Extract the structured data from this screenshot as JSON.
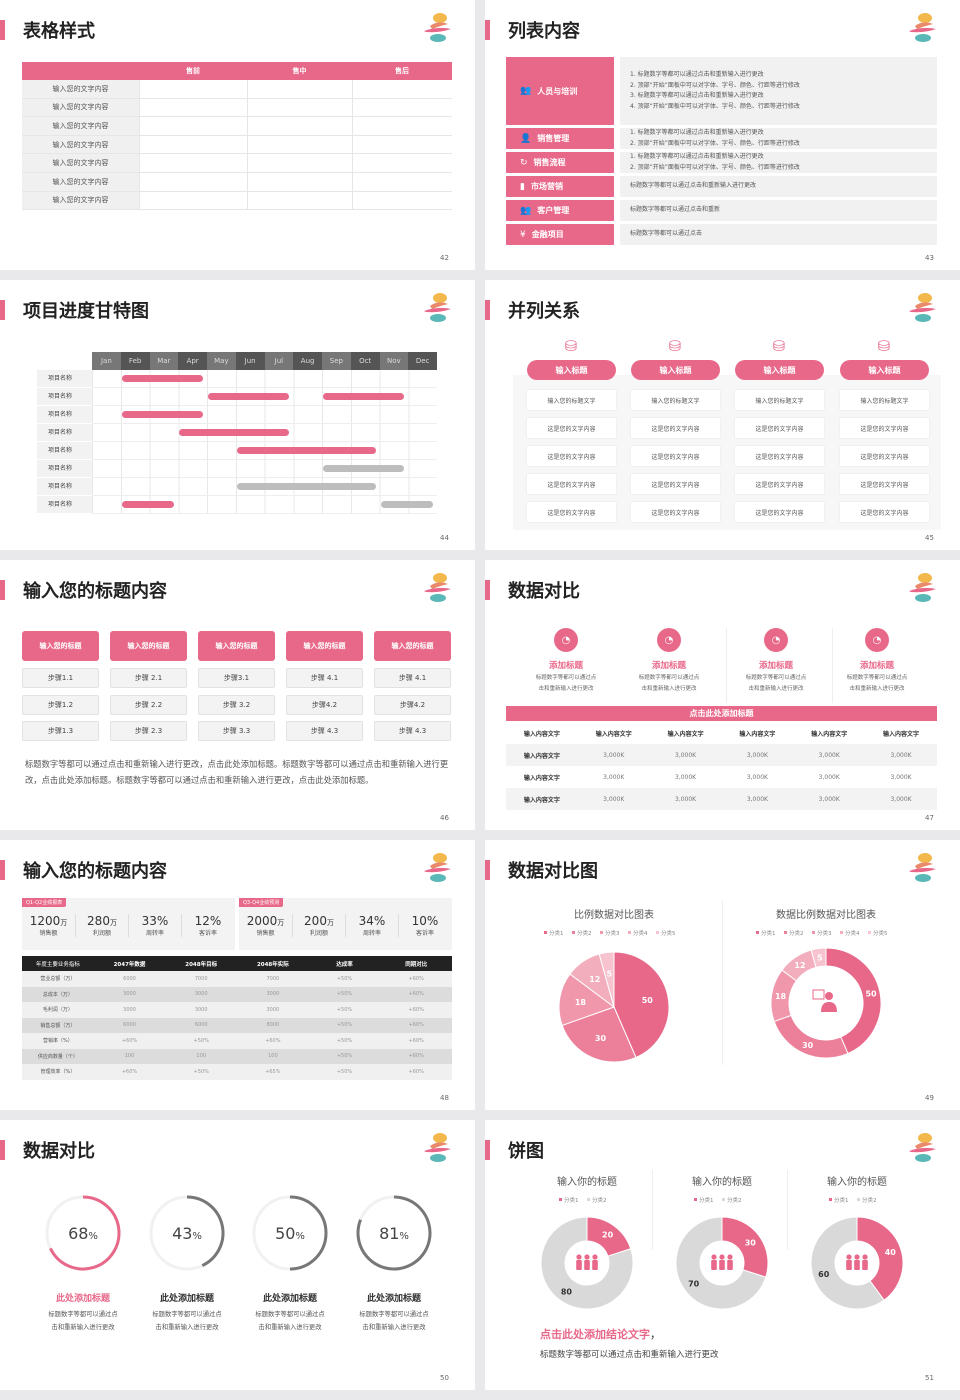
{
  "colors": {
    "accent": "#e8688a",
    "gray_bar": "#bbbbbb",
    "dark_header": "#222222",
    "ring_gray": "#777777"
  },
  "slides": {
    "s42": {
      "title": "表格样式",
      "page": "42",
      "headers": [
        "",
        "售前",
        "售中",
        "售后"
      ],
      "rows": [
        "输入您的文字内容",
        "输入您的文字内容",
        "输入您的文字内容",
        "输入您的文字内容",
        "输入您的文字内容",
        "输入您的文字内容",
        "输入您的文字内容"
      ]
    },
    "s43": {
      "title": "列表内容",
      "page": "43",
      "items": [
        {
          "label": "人员与培训",
          "icon": "people-training-icon",
          "lines": [
            "1.  标题数字等都可以通过点击和重新输入进行更改",
            "2.  顶部“开始”面板中可以对字体、字号、颜色、行距等进行修改",
            "3.  标题数字等都可以通过点击和重新输入进行更改",
            "4.  顶部“开始”面板中可以对字体、字号、颜色、行距等进行修改"
          ]
        },
        {
          "label": "销售管理",
          "icon": "sales-manager-icon",
          "lines": [
            "1.  标题数字等都可以通过点击和重新输入进行更改",
            "2.  顶部“开始”面板中可以对字体、字号、颜色、行距等进行修改"
          ]
        },
        {
          "label": "销售流程",
          "icon": "process-cycle-icon",
          "lines": [
            "1.  标题数字等都可以通过点击和重新输入进行更改",
            "2.  顶部“开始”面板中可以对字体、字号、颜色、行距等进行修改"
          ]
        },
        {
          "label": "市场营销",
          "icon": "bar-chart-icon",
          "lines": [
            "标题数字等都可以通过点击和重新输入进行更改"
          ]
        },
        {
          "label": "客户管理",
          "icon": "customers-icon",
          "lines": [
            "标题数字等都可以通过点击和重新"
          ]
        },
        {
          "label": "金融项目",
          "icon": "finance-hand-icon",
          "lines": [
            "标题数字等都可以通过点击"
          ]
        }
      ]
    },
    "s44": {
      "title": "项目进度甘特图",
      "page": "44",
      "months": [
        "Jan",
        "Feb",
        "Mar",
        "Apr",
        "May",
        "Jun",
        "Jul",
        "Aug",
        "Sep",
        "Oct",
        "Nov",
        "Dec"
      ],
      "rows": [
        {
          "label": "项目名称",
          "bars": [
            {
              "start": "Feb",
              "end": "Apr",
              "color": "pink"
            }
          ]
        },
        {
          "label": "项目名称",
          "bars": [
            {
              "start": "May",
              "end": "Jul",
              "color": "pink"
            },
            {
              "start": "Sep",
              "end": "Nov",
              "color": "pink"
            }
          ]
        },
        {
          "label": "项目名称",
          "bars": [
            {
              "start": "Feb",
              "end": "Apr",
              "color": "pink"
            }
          ]
        },
        {
          "label": "项目名称",
          "bars": [
            {
              "start": "Apr",
              "end": "Jul",
              "color": "pink"
            }
          ]
        },
        {
          "label": "项目名称",
          "bars": [
            {
              "start": "Jun",
              "end": "Oct",
              "color": "pink"
            }
          ]
        },
        {
          "label": "项目名称",
          "bars": [
            {
              "start": "Sep",
              "end": "Nov",
              "color": "gray"
            }
          ]
        },
        {
          "label": "项目名称",
          "bars": [
            {
              "start": "Jun",
              "end": "Oct",
              "color": "gray"
            }
          ]
        },
        {
          "label": "项目名称",
          "bars": [
            {
              "start": "Feb",
              "end": "Mar",
              "color": "pink"
            },
            {
              "start": "Nov",
              "end": "Dec",
              "color": "gray"
            }
          ]
        }
      ]
    },
    "s45": {
      "title": "并列关系",
      "page": "45",
      "columns": [
        {
          "title": "输入标题",
          "cells": [
            "输入您的标题文字",
            "这是您的文字内容",
            "这是您的文字内容",
            "这是您的文字内容",
            "这是您的文字内容"
          ]
        },
        {
          "title": "输入标题",
          "cells": [
            "输入您的标题文字",
            "这是您的文字内容",
            "这是您的文字内容",
            "这是您的文字内容",
            "这是您的文字内容"
          ]
        },
        {
          "title": "输入标题",
          "cells": [
            "输入您的标题文字",
            "这是您的文字内容",
            "这是您的文字内容",
            "这是您的文字内容",
            "这是您的文字内容"
          ]
        },
        {
          "title": "输入标题",
          "cells": [
            "输入您的标题文字",
            "这是您的文字内容",
            "这是您的文字内容",
            "这是您的文字内容",
            "这是您的文字内容"
          ]
        }
      ]
    },
    "s46": {
      "title": "输入您的标题内容",
      "page": "46",
      "columns": [
        {
          "title": "输入您的标题",
          "steps": [
            "步骤1.1",
            "步骤1.2",
            "步骤1.3"
          ]
        },
        {
          "title": "输入您的标题",
          "steps": [
            "步骤 2.1",
            "步骤 2.2",
            "步骤 2.3"
          ]
        },
        {
          "title": "输入您的标题",
          "steps": [
            "步骤3.1",
            "步骤 3.2",
            "步骤 3.3"
          ]
        },
        {
          "title": "输入您的标题",
          "steps": [
            "步骤 4.1",
            "步骤4.2",
            "步骤 4.3"
          ]
        },
        {
          "title": "输入您的标题",
          "steps": [
            "步骤 4.1",
            "步骤4.2",
            "步骤 4.3"
          ]
        }
      ],
      "paragraph": "标题数字等都可以通过点击和重新输入进行更改，点击此处添加标题。标题数字等都可以通过点击和重新输入进行更改，点击此处添加标题。标题数字等都可以通过点击和重新输入进行更改，点击此处添加标题。"
    },
    "s47": {
      "title": "数据对比",
      "page": "47",
      "features": [
        {
          "title": "添加标题",
          "desc": [
            "标题数字等都可以通过点",
            "击和重新输入进行更改"
          ]
        },
        {
          "title": "添加标题",
          "desc": [
            "标题数字等都可以通过点",
            "击和重新输入进行更改"
          ]
        },
        {
          "title": "添加标题",
          "desc": [
            "标题数字等都可以通过点",
            "击和重新输入进行更改"
          ]
        },
        {
          "title": "添加标题",
          "desc": [
            "标题数字等都可以通过点",
            "击和重新输入进行更改"
          ]
        }
      ],
      "banner": "点击此处添加标题",
      "table": {
        "header": [
          "输入内容文字",
          "输入内容文字",
          "输入内容文字",
          "输入内容文字",
          "输入内容文字",
          "输入内容文字"
        ],
        "rows": [
          [
            "输入内容文字",
            "3,000K",
            "3,000K",
            "3,000K",
            "3,000K",
            "3,000K"
          ],
          [
            "输入内容文字",
            "3,000K",
            "3,000K",
            "3,000K",
            "3,000K",
            "3,000K"
          ],
          [
            "输入内容文字",
            "3,000K",
            "3,000K",
            "3,000K",
            "3,000K",
            "3,000K"
          ]
        ]
      }
    },
    "s48": {
      "title": "输入您的标题内容",
      "page": "48",
      "kpi_groups": [
        {
          "tag": "Q1-Q2业绩报表",
          "items": [
            {
              "value": "1200",
              "unit": "万",
              "label": "销售额"
            },
            {
              "value": "280",
              "unit": "万",
              "label": "利润额"
            },
            {
              "value": "33%",
              "unit": "",
              "label": "周转率"
            },
            {
              "value": "12%",
              "unit": "",
              "label": "客诉率"
            }
          ]
        },
        {
          "tag": "Q3-Q4业绩预测",
          "items": [
            {
              "value": "2000",
              "unit": "万",
              "label": "销售额"
            },
            {
              "value": "200",
              "unit": "万",
              "label": "利润额"
            },
            {
              "value": "34%",
              "unit": "",
              "label": "周转率"
            },
            {
              "value": "10%",
              "unit": "",
              "label": "客诉率"
            }
          ]
        }
      ],
      "table": {
        "header": [
          "年度主要业务指标",
          "2047年数据",
          "2048年目标",
          "2048年实际",
          "达成率",
          "同期对比"
        ],
        "rows": [
          [
            "营业总额（万）",
            "6000",
            "7000",
            "7000",
            "+50%",
            "+60%"
          ],
          [
            "总成本（万）",
            "3000",
            "3000",
            "3000",
            "+50%",
            "+60%"
          ],
          [
            "毛利润（万）",
            "3000",
            "3000",
            "3000",
            "+50%",
            "+60%"
          ],
          [
            "销售总额（万）",
            "6000",
            "6000",
            "8000",
            "+50%",
            "+60%"
          ],
          [
            "营销率（%）",
            "+60%",
            "+50%",
            "+60%",
            "+50%",
            "+60%"
          ],
          [
            "供应商数量（个）",
            "100",
            "100",
            "100",
            "+50%",
            "+60%"
          ],
          [
            "管理效率（%）",
            "+60%",
            "+50%",
            "+65%",
            "+50%",
            "+60%"
          ]
        ]
      }
    },
    "s49": {
      "title": "数据对比图",
      "page": "49"
    },
    "s50": {
      "title": "数据对比",
      "page": "50",
      "items": [
        {
          "title": "此处添加标题",
          "desc": [
            "标题数字等都可以通过点",
            "击和重新输入进行更改"
          ]
        },
        {
          "title": "此处添加标题",
          "desc": [
            "标题数字等都可以通过点",
            "击和重新输入进行更改"
          ]
        },
        {
          "title": "此处添加标题",
          "desc": [
            "标题数字等都可以通过点",
            "击和重新输入进行更改"
          ]
        },
        {
          "title": "此处添加标题",
          "desc": [
            "标题数字等都可以通过点",
            "击和重新输入进行更改"
          ]
        }
      ]
    },
    "s51": {
      "title": "饼图",
      "page": "51",
      "conclusion": "点击此处添加结论文字",
      "conclusion_comma": "，",
      "text": "标题数字等都可以通过点击和重新输入进行更改"
    }
  },
  "chart_data": [
    {
      "type": "pie",
      "title": "比例数据对比图表",
      "categories": [
        "分类1",
        "分类2",
        "分类3",
        "分类4",
        "分类5"
      ],
      "values": [
        50,
        30,
        18,
        12,
        5
      ],
      "colors": [
        "#e8688a",
        "#ec7f9a",
        "#f097ac",
        "#f3aebd",
        "#f6c3cf"
      ],
      "legend": "top"
    },
    {
      "type": "donut",
      "title": "数据比例数据对比图表",
      "categories": [
        "分类1",
        "分类2",
        "分类3",
        "分类4",
        "分类5"
      ],
      "values": [
        50,
        30,
        18,
        12,
        5
      ],
      "colors": [
        "#e8688a",
        "#ec7f9a",
        "#f097ac",
        "#f3aebd",
        "#f6c3cf"
      ],
      "legend": "top",
      "center_icon": "presenter-icon"
    },
    {
      "type": "progress_rings",
      "values": [
        68,
        43,
        50,
        81
      ],
      "labels": [
        "68",
        "43",
        "50",
        "81"
      ],
      "unit": "%",
      "colors": [
        "#e8688a",
        "#777777",
        "#777777",
        "#777777"
      ]
    },
    {
      "type": "donut",
      "title": "输入你的标题",
      "categories": [
        "分类1",
        "分类2"
      ],
      "values": [
        20,
        80
      ],
      "colors": [
        "#e8688a",
        "#d9d9d9"
      ],
      "center_icon": "team-icon"
    },
    {
      "type": "donut",
      "title": "输入你的标题",
      "categories": [
        "分类1",
        "分类2"
      ],
      "values": [
        30,
        70
      ],
      "colors": [
        "#e8688a",
        "#d9d9d9"
      ],
      "center_icon": "team-icon"
    },
    {
      "type": "donut",
      "title": "输入你的标题",
      "categories": [
        "分类1",
        "分类2"
      ],
      "values": [
        40,
        60
      ],
      "colors": [
        "#e8688a",
        "#d9d9d9"
      ],
      "center_icon": "team-icon"
    }
  ]
}
